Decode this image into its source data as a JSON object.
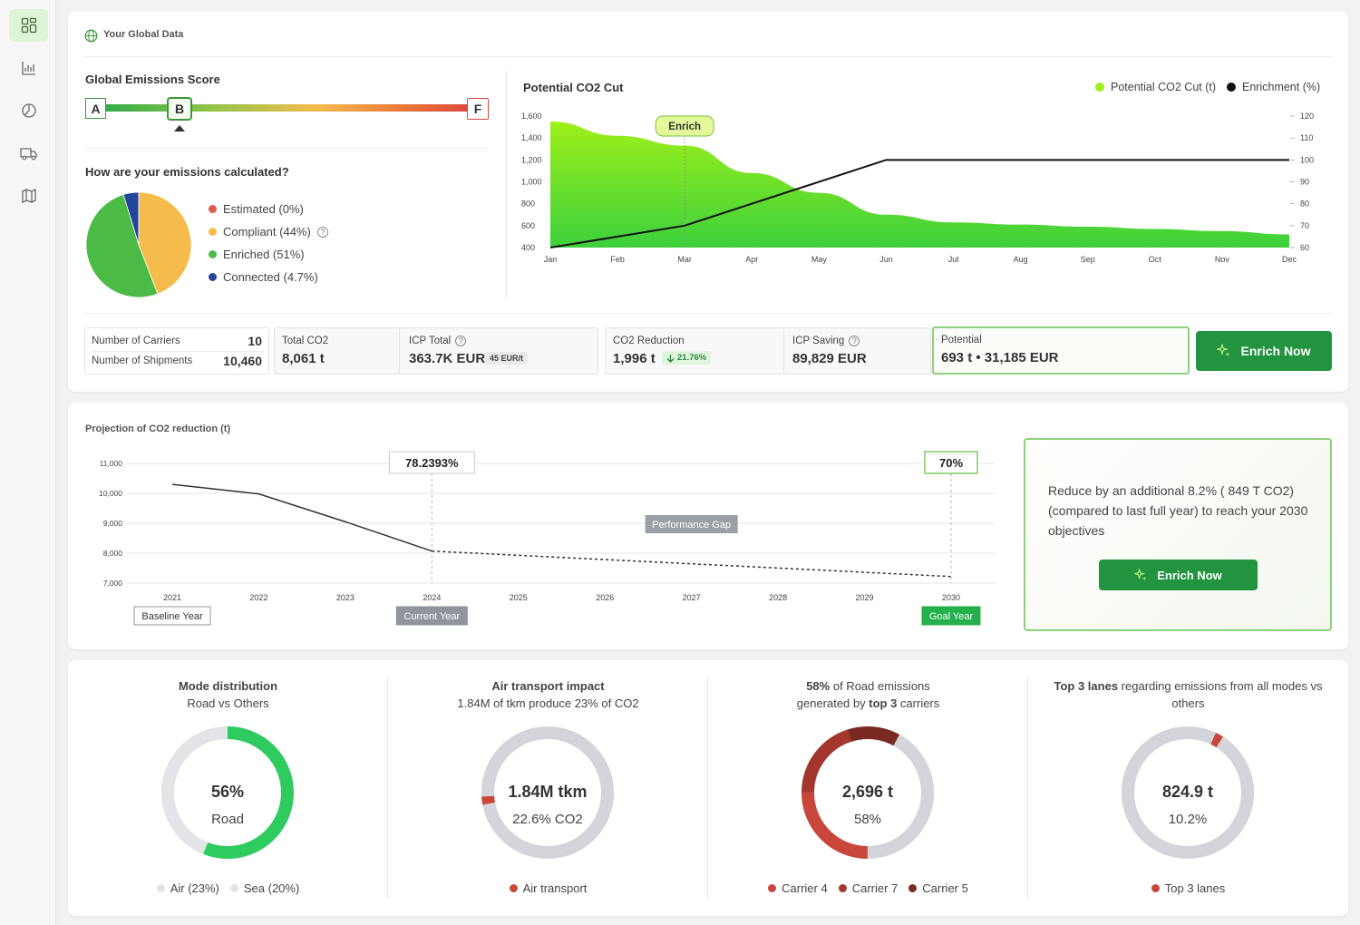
{
  "header": {
    "title": "Your Global Data"
  },
  "score": {
    "title": "Global Emissions Score",
    "grades": [
      "A",
      "B",
      "F"
    ]
  },
  "method": {
    "title": "How are your emissions calculated?",
    "items": [
      {
        "label": "Estimated (0%)",
        "color": "#e05a4e",
        "help": false
      },
      {
        "label": "Compliant (44%)",
        "color": "#f5bb4c",
        "help": true
      },
      {
        "label": "Enriched (51%)",
        "color": "#4cbb46",
        "help": false
      },
      {
        "label": "Connected (4.7%)",
        "color": "#23449a",
        "help": false
      }
    ],
    "pie": [
      0,
      44,
      51,
      4.7
    ]
  },
  "co2cut": {
    "title": "Potential CO2 Cut",
    "legend": [
      "Potential CO2 Cut (t)",
      "Enrichment (%)"
    ],
    "enrich_marker": "Enrich",
    "colors": {
      "area_top": "#9ef01a",
      "area_bottom": "#3dd03d",
      "line": "#111111"
    }
  },
  "kpis": {
    "carriers_label": "Number of Carriers",
    "carriers_value": "10",
    "shipments_label": "Number of Shipments",
    "shipments_value": "10,460",
    "total_co2_label": "Total CO2",
    "total_co2_value": "8,061 t",
    "icp_total_label": "ICP Total",
    "icp_total_value": "363.7K EUR",
    "icp_total_badge": "45 EUR/t",
    "co2_reduction_label": "CO2 Reduction",
    "co2_reduction_value": "1,996 t",
    "co2_reduction_badge": "21.76%",
    "icp_saving_label": "ICP Saving",
    "icp_saving_value": "89,829 EUR",
    "potential_label": "Potential",
    "potential_value": "693 t • 31,185 EUR",
    "enrich_button": "Enrich Now"
  },
  "projection": {
    "title": "Projection of CO2 reduction (t)",
    "current_pct": "78.2393%",
    "goal_pct": "70%",
    "gap_label": "Performance Gap",
    "baseline_label": "Baseline Year",
    "current_label": "Current Year",
    "goal_label": "Goal Year"
  },
  "objective": {
    "text": "Reduce by an additional 8.2% ( 849 T CO2) (compared to last full year) to reach your 2030 objectives",
    "button": "Enrich Now"
  },
  "donuts": [
    {
      "title_html": "<b>Mode distribution</b><br>Road vs Others",
      "main": "56%",
      "sub": "Road",
      "legend": [
        {
          "label": "Air (23%)",
          "color": "#e2e3e6"
        },
        {
          "label": "Sea (20%)",
          "color": "#e2e3e6"
        }
      ],
      "segments": [
        {
          "value": 56,
          "color": "#2ecc5f"
        },
        {
          "value": 44,
          "color": "#e3e4e8"
        }
      ]
    },
    {
      "title_html": "<b>Air transport impact</b><br>1.84M of tkm produce 23% of CO2",
      "main": "1.84M tkm",
      "sub": "22.6% CO2",
      "legend": [
        {
          "label": "Air transport",
          "color": "#c9473a"
        }
      ],
      "segments": [
        {
          "value": 2,
          "color": "#c9473a",
          "offset": 72
        },
        {
          "value": 98,
          "color": "#d3d5db"
        }
      ]
    },
    {
      "title_html": "<b>58%</b> of Road emissions<br>generated by <b>top 3</b> carriers",
      "main": "2,696 t",
      "sub": "58%",
      "legend": [
        {
          "label": "Carrier 4",
          "color": "#c9473a"
        },
        {
          "label": "Carrier 7",
          "color": "#a3372d"
        },
        {
          "label": "Carrier 5",
          "color": "#7a2a22"
        }
      ],
      "segments": [
        {
          "value": 25,
          "color": "#c9473a",
          "offset": 50
        },
        {
          "value": 20,
          "color": "#a3372d"
        },
        {
          "value": 13,
          "color": "#7a2a22"
        },
        {
          "value": 42,
          "color": "#d3d5db"
        }
      ]
    },
    {
      "title_html": "<b>Top 3 lanes</b> regarding emissions from all modes vs<br>others",
      "main": "824.9 t",
      "sub": "10.2%",
      "legend": [
        {
          "label": "Top 3 lanes",
          "color": "#c9473a"
        }
      ],
      "segments": [
        {
          "value": 2,
          "color": "#c9473a",
          "offset": 7
        },
        {
          "value": 98,
          "color": "#d3d5db"
        }
      ]
    }
  ],
  "chart_data": [
    {
      "type": "area",
      "title": "Potential CO2 Cut",
      "categories": [
        "Jan",
        "Feb",
        "Mar",
        "Apr",
        "May",
        "Jun",
        "Jul",
        "Aug",
        "Sep",
        "Oct",
        "Nov",
        "Dec"
      ],
      "series": [
        {
          "name": "Potential CO2 Cut (t)",
          "type": "area",
          "axis": "left",
          "values": [
            1550,
            1420,
            1330,
            1080,
            900,
            700,
            630,
            610,
            590,
            570,
            550,
            520
          ]
        },
        {
          "name": "Enrichment (%)",
          "type": "line",
          "axis": "right",
          "values": [
            60,
            null,
            70,
            null,
            null,
            100,
            100,
            100,
            100,
            100,
            100,
            100
          ]
        }
      ],
      "ylim_left": [
        400,
        1600
      ],
      "yticks_left": [
        "400",
        "600",
        "800",
        "1,000",
        "1,200",
        "1,400",
        "1,600"
      ],
      "ylim_right": [
        60,
        120
      ],
      "yticks_right": [
        "60",
        "70",
        "80",
        "90",
        "100",
        "110",
        "120"
      ],
      "legend": "top-right"
    },
    {
      "type": "line",
      "title": "Projection of CO2 reduction (t)",
      "categories": [
        "2021",
        "2022",
        "2023",
        "2024",
        "2025",
        "2026",
        "2027",
        "2028",
        "2029",
        "2030"
      ],
      "series": [
        {
          "style": "solid",
          "values": [
            10300,
            9980,
            9050,
            8070,
            null,
            null,
            null,
            null,
            null,
            null
          ]
        },
        {
          "style": "dashed",
          "values": [
            null,
            null,
            null,
            8070,
            null,
            null,
            null,
            null,
            null,
            7220
          ]
        }
      ],
      "ylim": [
        7000,
        11000
      ],
      "yticks": [
        "7,000",
        "8,000",
        "9,000",
        "10,000",
        "11,000"
      ]
    }
  ]
}
